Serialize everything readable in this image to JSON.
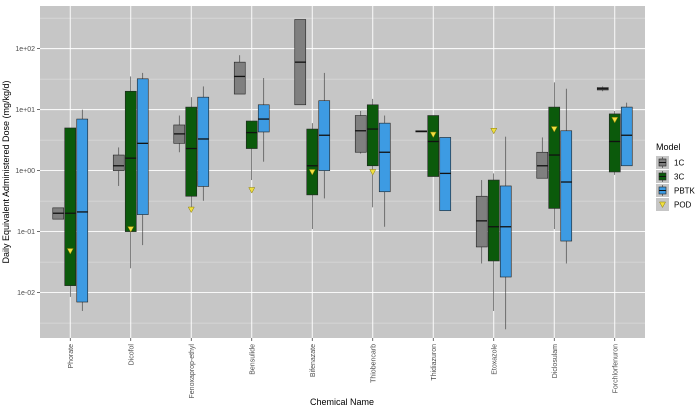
{
  "chart_data": {
    "type": "boxplot",
    "xlabel": "Chemical Name",
    "ylabel": "Daily Equivalent Administered Dose (mg/kg/d)",
    "y_scale": "log",
    "ylim": [
      0.0018,
      500
    ],
    "y_ticks": [
      {
        "value": 0.01,
        "label": "1e-02"
      },
      {
        "value": 0.1,
        "label": "1e-01"
      },
      {
        "value": 1,
        "label": "1e+00"
      },
      {
        "value": 10,
        "label": "1e+01"
      },
      {
        "value": 100,
        "label": "1e+02"
      }
    ],
    "grid": true,
    "legend": {
      "title": "Model",
      "position": "right",
      "entries": [
        {
          "name": "1C",
          "color": "#7f7f7f",
          "shape": "box"
        },
        {
          "name": "3C",
          "color": "#0b5a0b",
          "shape": "box"
        },
        {
          "name": "PBTK",
          "color": "#3d9be3",
          "shape": "box"
        },
        {
          "name": "POD",
          "color": "#f0e040",
          "shape": "triangle-down"
        }
      ]
    },
    "categories": [
      "Phorate",
      "Dicofol",
      "Fenoxaprop-ethyl",
      "Bensulide",
      "Bifenazate",
      "Thiobencarb",
      "Thidiazuron",
      "Etoxazole",
      "Diclosulam",
      "Forchlorfenuron"
    ],
    "series": [
      {
        "name": "1C",
        "color": "#7f7f7f",
        "boxes": [
          {
            "category": "Phorate",
            "whisker_low": 0.16,
            "q1": 0.16,
            "median": 0.2,
            "q3": 0.245,
            "whisker_high": 0.245
          },
          {
            "category": "Dicofol",
            "whisker_low": 0.56,
            "q1": 1.0,
            "median": 1.2,
            "q3": 1.8,
            "whisker_high": 2.4
          },
          {
            "category": "Fenoxaprop-ethyl",
            "whisker_low": 2.0,
            "q1": 2.8,
            "median": 4.0,
            "q3": 5.6,
            "whisker_high": 8.0
          },
          {
            "category": "Bensulide",
            "whisker_low": 18.0,
            "q1": 18.0,
            "median": 35.0,
            "q3": 60.0,
            "whisker_high": 78.0
          },
          {
            "category": "Bifenazate",
            "whisker_low": 12.0,
            "q1": 12.0,
            "median": 60.0,
            "q3": 300.0,
            "whisker_high": 300.0
          },
          {
            "category": "Thiobencarb",
            "whisker_low": 1.9,
            "q1": 2.0,
            "median": 4.5,
            "q3": 8.0,
            "whisker_high": 9.5
          },
          {
            "category": "Thidiazuron",
            "whisker_low": 4.3,
            "q1": 4.3,
            "median": 4.4,
            "q3": 4.5,
            "whisker_high": 4.5
          },
          {
            "category": "Etoxazole",
            "whisker_low": 0.03,
            "q1": 0.056,
            "median": 0.15,
            "q3": 0.38,
            "whisker_high": 0.7
          },
          {
            "category": "Diclosulam",
            "whisker_low": 0.75,
            "q1": 0.75,
            "median": 1.2,
            "q3": 2.0,
            "whisker_high": 3.5
          },
          {
            "category": "Forchlorfenuron",
            "whisker_low": 20.0,
            "q1": 21.0,
            "median": 22.0,
            "q3": 23.0,
            "whisker_high": 24.0
          }
        ]
      },
      {
        "name": "3C",
        "color": "#0b5a0b",
        "boxes": [
          {
            "category": "Phorate",
            "whisker_low": 0.0085,
            "q1": 0.013,
            "median": 0.2,
            "q3": 5.0,
            "whisker_high": 5.0
          },
          {
            "category": "Dicofol",
            "whisker_low": 0.025,
            "q1": 0.1,
            "median": 1.6,
            "q3": 20.0,
            "whisker_high": 35.0
          },
          {
            "category": "Fenoxaprop-ethyl",
            "whisker_low": 0.22,
            "q1": 0.38,
            "median": 2.3,
            "q3": 11.0,
            "whisker_high": 16.0
          },
          {
            "category": "Bensulide",
            "whisker_low": 0.7,
            "q1": 2.3,
            "median": 4.2,
            "q3": 6.5,
            "whisker_high": 6.5
          },
          {
            "category": "Bifenazate",
            "whisker_low": 0.11,
            "q1": 0.4,
            "median": 1.2,
            "q3": 4.8,
            "whisker_high": 6.0
          },
          {
            "category": "Thiobencarb",
            "whisker_low": 0.25,
            "q1": 1.2,
            "median": 4.8,
            "q3": 12.0,
            "whisker_high": 15.0
          },
          {
            "category": "Thidiazuron",
            "whisker_low": 0.8,
            "q1": 0.8,
            "median": 3.0,
            "q3": 8.0,
            "whisker_high": 8.0
          },
          {
            "category": "Etoxazole",
            "whisker_low": 0.005,
            "q1": 0.033,
            "median": 0.12,
            "q3": 0.7,
            "whisker_high": 0.9
          },
          {
            "category": "Diclosulam",
            "whisker_low": 0.11,
            "q1": 0.24,
            "median": 1.8,
            "q3": 11.0,
            "whisker_high": 28.0
          },
          {
            "category": "Forchlorfenuron",
            "whisker_low": 0.85,
            "q1": 0.95,
            "median": 3.0,
            "q3": 8.5,
            "whisker_high": 9.5
          }
        ]
      },
      {
        "name": "PBTK",
        "color": "#3d9be3",
        "boxes": [
          {
            "category": "Phorate",
            "whisker_low": 0.005,
            "q1": 0.007,
            "median": 0.21,
            "q3": 7.0,
            "whisker_high": 10.0
          },
          {
            "category": "Dicofol",
            "whisker_low": 0.06,
            "q1": 0.19,
            "median": 2.8,
            "q3": 32.0,
            "whisker_high": 40.0
          },
          {
            "category": "Fenoxaprop-ethyl",
            "whisker_low": 0.32,
            "q1": 0.55,
            "median": 3.3,
            "q3": 16.0,
            "whisker_high": 24.0
          },
          {
            "category": "Bensulide",
            "whisker_low": 1.4,
            "q1": 4.3,
            "median": 7.0,
            "q3": 12.0,
            "whisker_high": 33.0
          },
          {
            "category": "Bifenazate",
            "whisker_low": 0.35,
            "q1": 1.0,
            "median": 3.8,
            "q3": 14.0,
            "whisker_high": 40.0
          },
          {
            "category": "Thiobencarb",
            "whisker_low": 0.12,
            "q1": 0.45,
            "median": 2.0,
            "q3": 6.0,
            "whisker_high": 8.0
          },
          {
            "category": "Thidiazuron",
            "whisker_low": 0.22,
            "q1": 0.22,
            "median": 0.9,
            "q3": 3.5,
            "whisker_high": 3.5
          },
          {
            "category": "Etoxazole",
            "whisker_low": 0.0025,
            "q1": 0.018,
            "median": 0.12,
            "q3": 0.56,
            "whisker_high": 3.6
          },
          {
            "category": "Diclosulam",
            "whisker_low": 0.03,
            "q1": 0.07,
            "median": 0.65,
            "q3": 4.5,
            "whisker_high": 22.0
          },
          {
            "category": "Forchlorfenuron",
            "whisker_low": 1.2,
            "q1": 1.2,
            "median": 3.8,
            "q3": 11.0,
            "whisker_high": 13.0
          }
        ]
      }
    ],
    "pod_points": [
      {
        "category": "Phorate",
        "value": 0.048
      },
      {
        "category": "Dicofol",
        "value": 0.11
      },
      {
        "category": "Fenoxaprop-ethyl",
        "value": 0.23
      },
      {
        "category": "Bensulide",
        "value": 0.48
      },
      {
        "category": "Bifenazate",
        "value": 0.95
      },
      {
        "category": "Thiobencarb",
        "value": 0.95
      },
      {
        "category": "Thidiazuron",
        "value": 3.9
      },
      {
        "category": "Etoxazole",
        "value": 4.5
      },
      {
        "category": "Diclosulam",
        "value": 4.8
      },
      {
        "category": "Forchlorfenuron",
        "value": 6.8
      }
    ]
  }
}
